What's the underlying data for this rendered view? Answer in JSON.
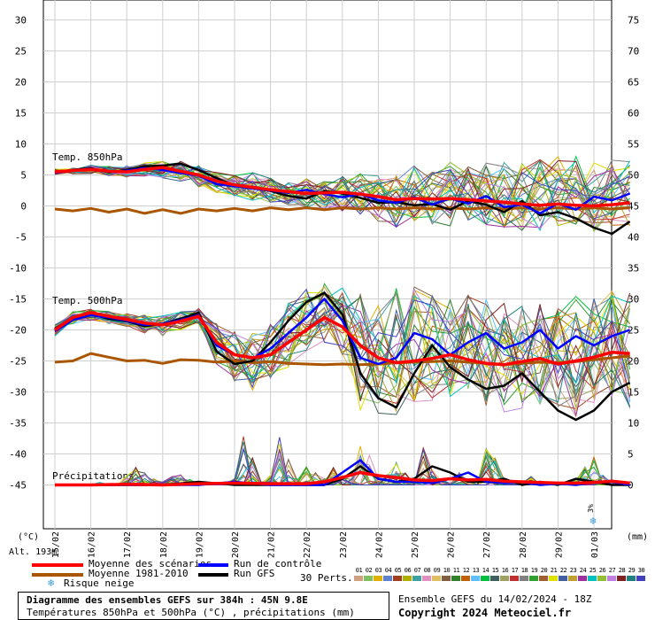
{
  "chart_data": {
    "type": "line",
    "title": "Diagramme des ensembles GEFS sur 384h : 45N 9.8E",
    "subtitle": "Températures 850hPa et 500hPa (°C) , précipitations (mm)",
    "left_axis": {
      "unit_label": "(°C)",
      "ticks": [
        30,
        25,
        20,
        15,
        10,
        5,
        0,
        -5,
        -10,
        -15,
        -20,
        -25,
        -30,
        -35,
        -40,
        -45
      ],
      "ylim": [
        -45,
        30
      ]
    },
    "right_axis": {
      "unit_label": "(mm)",
      "ticks": [
        75,
        70,
        65,
        60,
        55,
        50,
        45,
        40,
        35,
        30,
        25,
        20,
        15,
        10,
        5,
        0
      ],
      "ylim": [
        0,
        75
      ]
    },
    "x_tick_labels": [
      "15/02",
      "16/02",
      "17/02",
      "18/02",
      "19/02",
      "20/02",
      "21/02",
      "22/02",
      "23/02",
      "24/02",
      "25/02",
      "26/02",
      "27/02",
      "28/02",
      "29/02",
      "01/03"
    ],
    "x_day_start": 0.0,
    "x_day_end": 16.0,
    "annotations": {
      "t850": "Temp. 850hPa",
      "t500": "Temp. 500hPa",
      "precip": "Précipitations",
      "altitude": "Alt. 193m",
      "snow_pct": "3%"
    },
    "series": [
      {
        "name": "Moyenne des scénarios",
        "group": "t850",
        "color": "#ff0000",
        "x": [
          0,
          0.5,
          1,
          1.5,
          2,
          2.5,
          3,
          3.5,
          4,
          4.5,
          5,
          5.5,
          6,
          6.5,
          7,
          7.5,
          8,
          8.5,
          9,
          9.5,
          10,
          10.5,
          11,
          11.5,
          12,
          12.5,
          13,
          13.5,
          14,
          14.5,
          15,
          15.5,
          16
        ],
        "y": [
          5.5,
          5.7,
          5.9,
          5.6,
          5.5,
          5.9,
          6.2,
          5.6,
          5.0,
          4.0,
          3.4,
          3.0,
          2.6,
          2.3,
          2.0,
          2.1,
          2.2,
          1.9,
          1.5,
          1.0,
          1.2,
          1.1,
          1.2,
          1.0,
          0.8,
          0.6,
          0.3,
          0.1,
          0.3,
          0.1,
          0.0,
          0.2,
          0.5
        ]
      },
      {
        "name": "Moyenne 1981-2010",
        "group": "t850",
        "color": "#aa5500",
        "x": [
          0,
          0.5,
          1,
          1.5,
          2,
          2.5,
          3,
          3.5,
          4,
          4.5,
          5,
          5.5,
          6,
          6.5,
          7,
          7.5,
          8,
          8.5,
          9,
          9.5,
          10,
          10.5,
          11,
          11.5,
          12,
          12.5,
          13,
          13.5,
          14,
          14.5,
          15,
          15.5,
          16
        ],
        "y": [
          -0.5,
          -0.8,
          -0.4,
          -1.0,
          -0.5,
          -1.2,
          -0.6,
          -1.2,
          -0.5,
          -0.8,
          -0.4,
          -0.8,
          -0.3,
          -0.6,
          -0.3,
          -0.6,
          -0.3,
          -0.5,
          -0.3,
          -0.5,
          -0.3,
          -0.5,
          -0.3,
          -0.5,
          -0.3,
          -0.5,
          -0.3,
          -0.5,
          -0.3,
          -0.5,
          -0.3,
          -0.5,
          -0.3
        ]
      },
      {
        "name": "Run GFS",
        "group": "t850",
        "color": "#000000",
        "x": [
          0,
          0.5,
          1,
          1.5,
          2,
          2.5,
          3,
          3.5,
          4,
          4.5,
          5,
          5.5,
          6,
          6.5,
          7,
          7.5,
          8,
          8.5,
          9,
          9.5,
          10,
          10.5,
          11,
          11.5,
          12,
          12.5,
          13,
          13.5,
          14,
          14.5,
          15,
          15.5,
          16
        ],
        "y": [
          5.4,
          5.8,
          6.1,
          5.4,
          5.8,
          6.4,
          6.5,
          6.8,
          5.8,
          4.5,
          3.2,
          2.9,
          2.4,
          1.6,
          1.2,
          2.4,
          2.0,
          1.3,
          0.5,
          0.6,
          0.1,
          0.3,
          -0.6,
          0.8,
          0.2,
          -1.0,
          0.8,
          -1.5,
          -1.0,
          -2.0,
          -3.5,
          -4.5,
          -2.5
        ]
      },
      {
        "name": "Run de contrôle",
        "group": "t850",
        "color": "#0000ff",
        "x": [
          0,
          0.5,
          1,
          1.5,
          2,
          2.5,
          3,
          3.5,
          4,
          4.5,
          5,
          5.5,
          6,
          6.5,
          7,
          7.5,
          8,
          8.5,
          9,
          9.5,
          10,
          10.5,
          11,
          11.5,
          12,
          12.5,
          13,
          13.5,
          14,
          14.5,
          15,
          15.5,
          16
        ],
        "y": [
          5.3,
          5.7,
          6.0,
          5.5,
          5.7,
          6.1,
          5.8,
          5.3,
          4.9,
          3.5,
          3.2,
          2.8,
          2.5,
          2.1,
          2.6,
          1.9,
          1.4,
          1.9,
          0.9,
          0.5,
          1.4,
          0.2,
          1.2,
          0.4,
          1.6,
          -0.2,
          0.2,
          -1.2,
          0.4,
          -0.6,
          1.5,
          0.9,
          2.0
        ]
      },
      {
        "name": "Moyenne des scénarios",
        "group": "t500",
        "color": "#ff0000",
        "x": [
          0,
          0.5,
          1,
          1.5,
          2,
          2.5,
          3,
          3.5,
          4,
          4.5,
          5,
          5.5,
          6,
          6.5,
          7,
          7.5,
          8,
          8.5,
          9,
          9.5,
          10,
          10.5,
          11,
          11.5,
          12,
          12.5,
          13,
          13.5,
          14,
          14.5,
          15,
          15.5,
          16
        ],
        "y": [
          -20,
          -18,
          -17.2,
          -17.8,
          -18.3,
          -18.9,
          -19.2,
          -18.6,
          -17.8,
          -22.0,
          -24.0,
          -24.5,
          -24.0,
          -22.0,
          -20.0,
          -18.0,
          -19.5,
          -22.5,
          -24.5,
          -25.3,
          -25.0,
          -24.6,
          -24.0,
          -24.8,
          -25.4,
          -25.6,
          -25.1,
          -24.6,
          -25.5,
          -25.0,
          -24.4,
          -23.6,
          -23.8
        ]
      },
      {
        "name": "Moyenne 1981-2010",
        "group": "t500",
        "color": "#aa5500",
        "x": [
          0,
          0.5,
          1,
          1.5,
          2,
          2.5,
          3,
          3.5,
          4,
          4.5,
          5,
          5.5,
          6,
          6.5,
          7,
          7.5,
          8,
          8.5,
          9,
          9.5,
          10,
          10.5,
          11,
          11.5,
          12,
          12.5,
          13,
          13.5,
          14,
          14.5,
          15,
          15.5,
          16
        ],
        "y": [
          -25.2,
          -25.0,
          -23.8,
          -24.4,
          -25.0,
          -24.9,
          -25.4,
          -24.8,
          -24.9,
          -25.2,
          -25.0,
          -25.3,
          -25.1,
          -25.4,
          -25.5,
          -25.6,
          -25.5,
          -25.6,
          -25.5,
          -25.3,
          -25.2,
          -25.1,
          -25.0,
          -25.2,
          -25.4,
          -25.6,
          -25.4,
          -25.2,
          -25.3,
          -25.1,
          -24.8,
          -24.5,
          -24.2
        ]
      },
      {
        "name": "Run GFS",
        "group": "t500",
        "color": "#000000",
        "x": [
          0,
          0.5,
          1,
          1.5,
          2,
          2.5,
          3,
          3.5,
          4,
          4.5,
          5,
          5.5,
          6,
          6.5,
          7,
          7.5,
          8,
          8.5,
          9,
          9.5,
          10,
          10.5,
          11,
          11.5,
          12,
          12.5,
          13,
          13.5,
          14,
          14.5,
          15,
          15.5,
          16
        ],
        "y": [
          -19.8,
          -18.2,
          -17.4,
          -18.2,
          -18.6,
          -19.4,
          -19.0,
          -18.2,
          -17.2,
          -23.5,
          -25.5,
          -25.0,
          -22.0,
          -18.5,
          -15.5,
          -14.0,
          -17.5,
          -27.0,
          -31.0,
          -32.5,
          -27.0,
          -22.5,
          -26.0,
          -28.0,
          -29.5,
          -29.0,
          -27.0,
          -30.0,
          -33.0,
          -34.5,
          -33.0,
          -30.0,
          -28.5
        ]
      },
      {
        "name": "Run de contrôle",
        "group": "t500",
        "color": "#0000ff",
        "x": [
          0,
          0.5,
          1,
          1.5,
          2,
          2.5,
          3,
          3.5,
          4,
          4.5,
          5,
          5.5,
          6,
          6.5,
          7,
          7.5,
          8,
          8.5,
          9,
          9.5,
          10,
          10.5,
          11,
          11.5,
          12,
          12.5,
          13,
          13.5,
          14,
          14.5,
          15,
          15.5,
          16
        ],
        "y": [
          -20.2,
          -18.4,
          -17.6,
          -18.0,
          -18.5,
          -19.2,
          -19.0,
          -18.4,
          -17.6,
          -22.5,
          -24.0,
          -24.6,
          -23.0,
          -20.5,
          -18.0,
          -15.0,
          -18.5,
          -24.5,
          -25.5,
          -24.5,
          -20.5,
          -21.5,
          -24.0,
          -22.0,
          -20.5,
          -23.0,
          -22.0,
          -20.0,
          -23.0,
          -21.0,
          -22.5,
          -21.0,
          -20.0
        ]
      },
      {
        "name": "Moyenne des scénarios",
        "group": "precip",
        "color": "#ff0000",
        "x": [
          0,
          1,
          2,
          3,
          4,
          5,
          6,
          7,
          7.5,
          8,
          8.5,
          9,
          9.5,
          10,
          10.5,
          11,
          11.5,
          12,
          12.5,
          13,
          13.5,
          14,
          14.5,
          15,
          15.5,
          16
        ],
        "y": [
          0,
          0,
          0.1,
          0,
          0.2,
          0.3,
          0.2,
          0.2,
          0.5,
          1.2,
          2.0,
          1.5,
          1.2,
          0.8,
          0.7,
          1.0,
          0.8,
          0.9,
          0.6,
          0.5,
          0.4,
          0.3,
          0.3,
          0.4,
          0.6,
          0.3
        ]
      },
      {
        "name": "Run GFS",
        "group": "precip",
        "color": "#000000",
        "x": [
          0,
          1,
          2,
          3,
          4,
          5,
          6,
          7,
          7.5,
          8,
          8.5,
          9,
          9.5,
          10,
          10.5,
          11,
          11.5,
          12,
          12.5,
          13,
          13.5,
          14,
          14.5,
          15,
          15.5,
          16
        ],
        "y": [
          0,
          0,
          0,
          0,
          0.5,
          0,
          0,
          0,
          0,
          1.0,
          3.0,
          1.0,
          0.5,
          1.0,
          3.0,
          2.0,
          0.5,
          0.5,
          1.0,
          0,
          0.5,
          0,
          1.0,
          0.5,
          0,
          0
        ]
      },
      {
        "name": "Run de contrôle",
        "group": "precip",
        "color": "#0000ff",
        "x": [
          0,
          1,
          2,
          3,
          4,
          5,
          6,
          7,
          7.5,
          8,
          8.5,
          9,
          9.5,
          10,
          10.5,
          11,
          11.5,
          12,
          12.5,
          13,
          13.5,
          14,
          14.5,
          15,
          15.5,
          16
        ],
        "y": [
          0,
          0,
          0,
          0,
          0,
          0.5,
          0,
          0,
          0,
          2.0,
          4.0,
          1.0,
          0.5,
          0.5,
          0.3,
          1.0,
          2.0,
          0.5,
          0.3,
          0.5,
          0,
          0.2,
          0,
          0.4,
          0.5,
          0
        ]
      }
    ],
    "perturbation_spread": {
      "t850_min": [
        5.0,
        5.2,
        5.2,
        4.8,
        4.6,
        4.7,
        4.5,
        4.0,
        3.0,
        2.0,
        1.5,
        0.8,
        0.4,
        0.0,
        -0.5,
        -0.8,
        -1.0,
        -1.5,
        -2.5,
        -3.5,
        -2.5,
        -3.0,
        -3.5,
        -2.5,
        -3.0,
        -3.5,
        -4.0,
        -4.5,
        -3.5,
        -4.0,
        -4.2,
        -4.0,
        -3.5
      ],
      "t850_max": [
        6.0,
        6.2,
        6.6,
        6.4,
        6.6,
        7.0,
        7.5,
        7.2,
        6.5,
        5.5,
        5.0,
        5.5,
        4.6,
        4.0,
        4.5,
        4.0,
        5.0,
        5.5,
        5.0,
        6.0,
        6.5,
        6.0,
        7.5,
        6.5,
        7.0,
        7.5,
        7.0,
        7.5,
        8.0,
        8.5,
        8.0,
        7.5,
        7.5
      ],
      "t500_min": [
        -21,
        -19,
        -18.5,
        -19,
        -19.5,
        -20.5,
        -21,
        -20,
        -19,
        -26,
        -29,
        -30.5,
        -28,
        -26,
        -24,
        -22,
        -24,
        -33,
        -33.5,
        -34,
        -32,
        -32,
        -31,
        -30,
        -33,
        -34,
        -33,
        -32,
        -33,
        -34,
        -32,
        -31,
        -33
      ],
      "t500_max": [
        -19,
        -17,
        -16.5,
        -17,
        -17.2,
        -17.5,
        -17.5,
        -17,
        -16.5,
        -19,
        -20,
        -20,
        -18,
        -15,
        -13,
        -12.5,
        -13,
        -14,
        -15,
        -13,
        -13,
        -14,
        -15,
        -14,
        -15,
        -15.5,
        -16,
        -15.5,
        -16,
        -14.5,
        -14,
        -13.5,
        -14
      ],
      "precip_max": [
        0,
        0,
        0,
        0,
        0,
        0.5,
        0,
        0,
        1.5,
        3.0,
        2.0,
        1.0,
        0.5,
        1.5,
        2.0,
        1.0,
        0.2,
        0,
        0,
        0.5,
        1.0,
        9.5,
        5.0,
        0.5,
        1.5,
        8.0,
        5.0,
        1.0,
        3.0,
        2.0,
        1.0,
        3.0,
        1.5,
        1.0,
        8.0,
        5.0,
        1.0,
        2.0,
        4.0,
        2.0,
        0.5,
        6.0,
        3.0,
        1.0,
        0.3,
        2.0,
        1.0,
        0,
        6.0,
        5.0,
        1.0,
        0.2,
        0.5,
        1.5,
        0.3,
        0.2,
        0,
        0.5,
        1.0,
        3.0,
        5.0,
        2.0,
        0.5,
        0.2,
        0
      ]
    },
    "legend": {
      "placement": "bottom",
      "entries": [
        {
          "label": "Moyenne des scénarios",
          "color": "#ff0000"
        },
        {
          "label": "Moyenne 1981-2010",
          "color": "#aa5500"
        },
        {
          "label": "Risque neige",
          "color": "#3aa0e0"
        },
        {
          "label": "Run de contrôle",
          "color": "#0000ff"
        },
        {
          "label": "Run GFS",
          "color": "#000000"
        }
      ],
      "perts_label": "30 Perts.",
      "perts": [
        {
          "n": "01",
          "color": "#d0a080"
        },
        {
          "n": "02",
          "color": "#80c060"
        },
        {
          "n": "03",
          "color": "#e0b000"
        },
        {
          "n": "04",
          "color": "#6080d0"
        },
        {
          "n": "05",
          "color": "#a04020"
        },
        {
          "n": "06",
          "color": "#b0b000"
        },
        {
          "n": "07",
          "color": "#40a0a0"
        },
        {
          "n": "08",
          "color": "#e090c0"
        },
        {
          "n": "09",
          "color": "#e0c060"
        },
        {
          "n": "10",
          "color": "#806040"
        },
        {
          "n": "11",
          "color": "#308030"
        },
        {
          "n": "12",
          "color": "#c06000"
        },
        {
          "n": "13",
          "color": "#60c0ff"
        },
        {
          "n": "14",
          "color": "#00c040"
        },
        {
          "n": "15",
          "color": "#406060"
        },
        {
          "n": "16",
          "color": "#a0a060"
        },
        {
          "n": "17",
          "color": "#c03030"
        },
        {
          "n": "18",
          "color": "#808080"
        },
        {
          "n": "19",
          "color": "#30a030"
        },
        {
          "n": "20",
          "color": "#a06030"
        },
        {
          "n": "21",
          "color": "#e0e000"
        },
        {
          "n": "22",
          "color": "#4060a0"
        },
        {
          "n": "23",
          "color": "#c0a030"
        },
        {
          "n": "24",
          "color": "#a030a0"
        },
        {
          "n": "25",
          "color": "#00c0c0"
        },
        {
          "n": "26",
          "color": "#90c030"
        },
        {
          "n": "27",
          "color": "#c080e0"
        },
        {
          "n": "28",
          "color": "#802020"
        },
        {
          "n": "29",
          "color": "#208080"
        },
        {
          "n": "30",
          "color": "#4040c0"
        }
      ]
    },
    "footer": {
      "title": "Diagramme des ensembles GEFS sur 384h : 45N 9.8E",
      "subtitle": "Températures 850hPa et 500hPa (°C) , précipitations (mm)",
      "run_info": "Ensemble GEFS du 14/02/2024 - 18Z",
      "copyright": "Copyright 2024 Meteociel.fr"
    },
    "grid": true
  }
}
